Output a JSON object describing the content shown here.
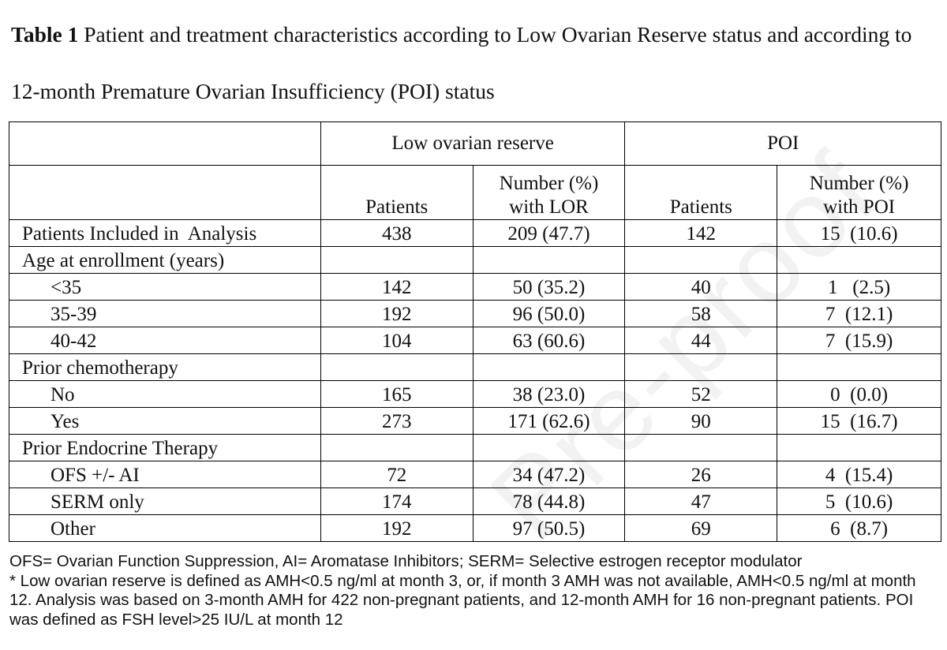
{
  "title": {
    "label": "Table 1",
    "text": "Patient and treatment characteristics according to Low Ovarian Reserve status and according to 12-month Premature Ovarian Insufficiency (POI) status"
  },
  "table": {
    "group_headers": [
      "Low ovarian reserve",
      "POI"
    ],
    "col_headers": {
      "lor_patients": "Patients",
      "lor_number_line1": "Number (%)",
      "lor_number_line2": "with LOR",
      "poi_patients": "Patients",
      "poi_number_line1": "Number (%)",
      "poi_number_line2": "with POI"
    },
    "rows": [
      {
        "label": "Patients Included in  Analysis",
        "lor_patients": "438",
        "lor_number": "209 (47.7)",
        "poi_patients": "142",
        "poi_number": "15  (10.6)"
      },
      {
        "label": "Age at enrollment (years)",
        "lor_patients": "",
        "lor_number": "",
        "poi_patients": "",
        "poi_number": ""
      },
      {
        "label": "<35",
        "lor_patients": "142",
        "lor_number": "50 (35.2)",
        "poi_patients": "40",
        "poi_number": "1   (2.5)"
      },
      {
        "label": "35-39",
        "lor_patients": "192",
        "lor_number": "96 (50.0)",
        "poi_patients": "58",
        "poi_number": "7  (12.1)"
      },
      {
        "label": "40-42",
        "lor_patients": "104",
        "lor_number": "63 (60.6)",
        "poi_patients": "44",
        "poi_number": "7  (15.9)"
      },
      {
        "label": "Prior chemotherapy",
        "lor_patients": "",
        "lor_number": "",
        "poi_patients": "",
        "poi_number": ""
      },
      {
        "label": "No",
        "lor_patients": "165",
        "lor_number": "38 (23.0)",
        "poi_patients": "52",
        "poi_number": "0  (0.0)"
      },
      {
        "label": "Yes",
        "lor_patients": "273",
        "lor_number": "171 (62.6)",
        "poi_patients": "90",
        "poi_number": "15  (16.7)"
      },
      {
        "label": "Prior Endocrine Therapy",
        "lor_patients": "",
        "lor_number": "",
        "poi_patients": "",
        "poi_number": ""
      },
      {
        "label": "OFS +/- AI",
        "lor_patients": "72",
        "lor_number": "34 (47.2)",
        "poi_patients": "26",
        "poi_number": "4  (15.4)"
      },
      {
        "label": "SERM only",
        "lor_patients": "174",
        "lor_number": "78 (44.8)",
        "poi_patients": "47",
        "poi_number": "5  (10.6)"
      },
      {
        "label": "Other",
        "lor_patients": "192",
        "lor_number": "97 (50.5)",
        "poi_patients": "69",
        "poi_number": "6  (8.7)"
      }
    ]
  },
  "footnotes": [
    "OFS= Ovarian Function Suppression, AI= Aromatase Inhibitors; SERM= Selective estrogen receptor modulator",
    "* Low ovarian reserve is defined as AMH<0.5 ng/ml at month 3, or, if month 3 AMH was not available, AMH<0.5 ng/ml at month 12. Analysis was based on 3-month AMH for 422 non-pregnant patients, and 12-month AMH for 16 non-pregnant patients. POI was defined as FSH level>25 IU/L at month 12"
  ]
}
